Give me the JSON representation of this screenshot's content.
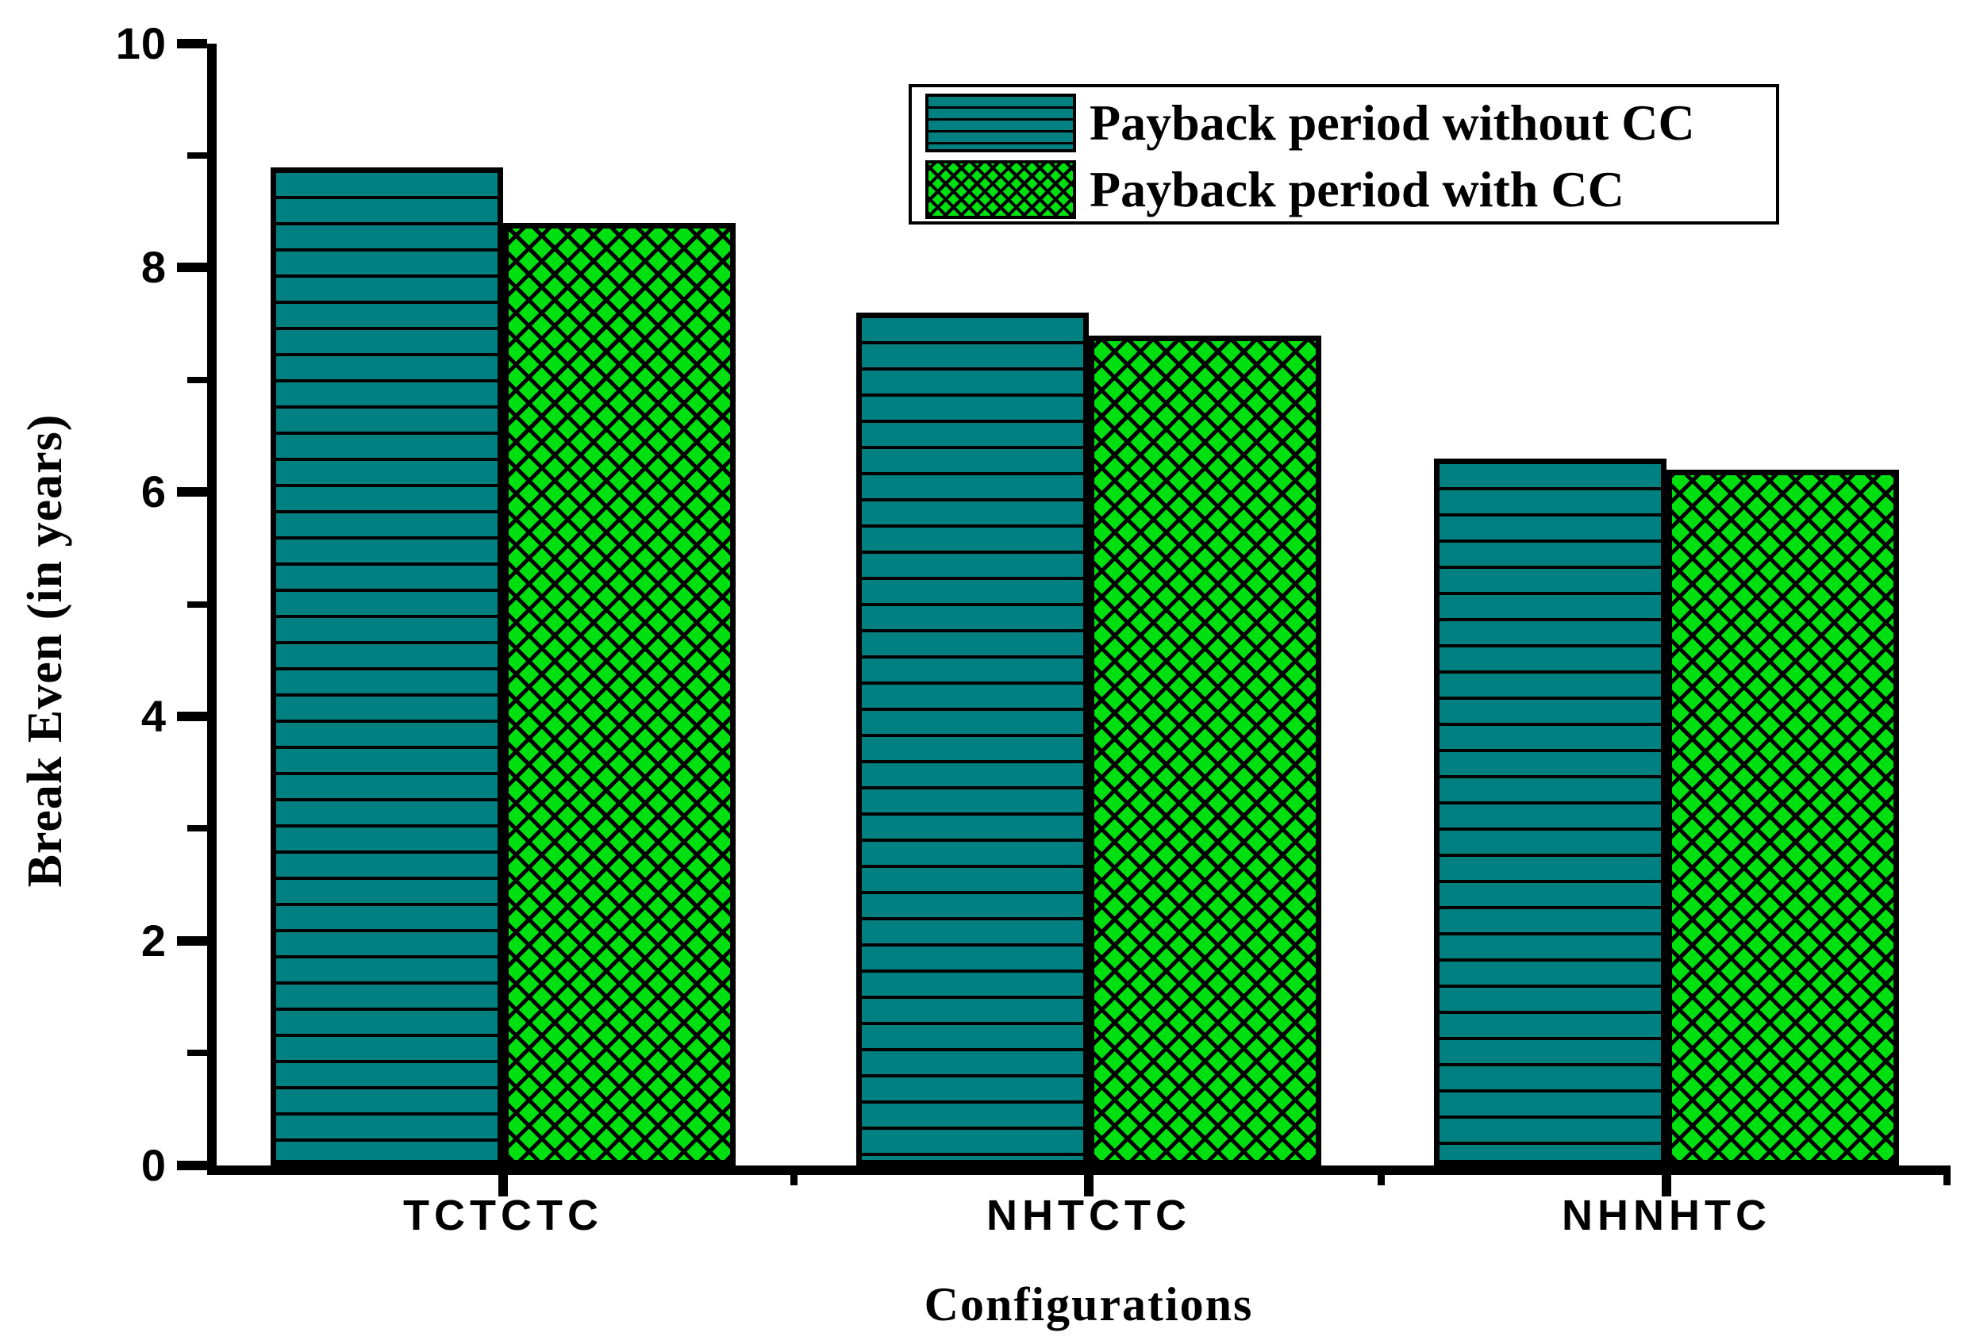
{
  "chart_data": {
    "type": "bar",
    "title": "",
    "categories": [
      "TCTCTC",
      "NHTCTC",
      "NHNHTC"
    ],
    "series": [
      {
        "name": "Payback period without CC",
        "values": [
          8.9,
          7.6,
          6.3
        ],
        "color": "#008080",
        "hatch": "horizontal-lines"
      },
      {
        "name": "Payback period with CC",
        "values": [
          8.4,
          7.4,
          6.2
        ],
        "color": "#00e010",
        "hatch": "diagonal-crosshatch"
      }
    ],
    "xlabel": "Configurations",
    "ylabel": "Break Even (in years)",
    "ylim": [
      0,
      10
    ],
    "y_ticks": [
      0,
      2,
      4,
      6,
      8,
      10
    ],
    "y_minor_ticks": [
      1,
      3,
      5,
      7,
      9
    ],
    "legend_position": "top-right-inside",
    "grid": false,
    "axis_color": "#000000",
    "text_color": "#000000",
    "background_color": "#ffffff"
  }
}
